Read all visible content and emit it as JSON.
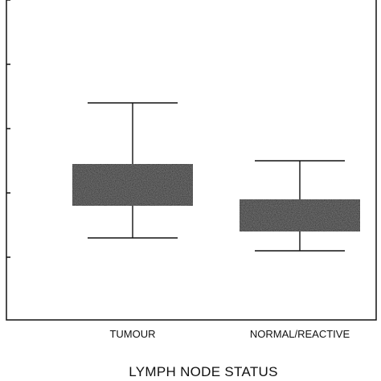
{
  "chart_data": {
    "type": "boxplot",
    "xlabel": "LYMPH NODE STATUS",
    "categories": [
      "TUMOUR",
      "NORMAL/REACTIVE"
    ],
    "y_ticks": [
      1,
      2,
      3,
      4,
      5
    ],
    "ylim": [
      0,
      5
    ],
    "grid": false,
    "legend": "none",
    "box_color": "#222222",
    "series": [
      {
        "category": "TUMOUR",
        "whisker_low": 1.3,
        "q1": 1.8,
        "q3": 2.45,
        "whisker_high": 3.4
      },
      {
        "category": "NORMAL/REACTIVE",
        "whisker_low": 1.1,
        "q1": 1.4,
        "q3": 1.9,
        "whisker_high": 2.5
      }
    ]
  }
}
